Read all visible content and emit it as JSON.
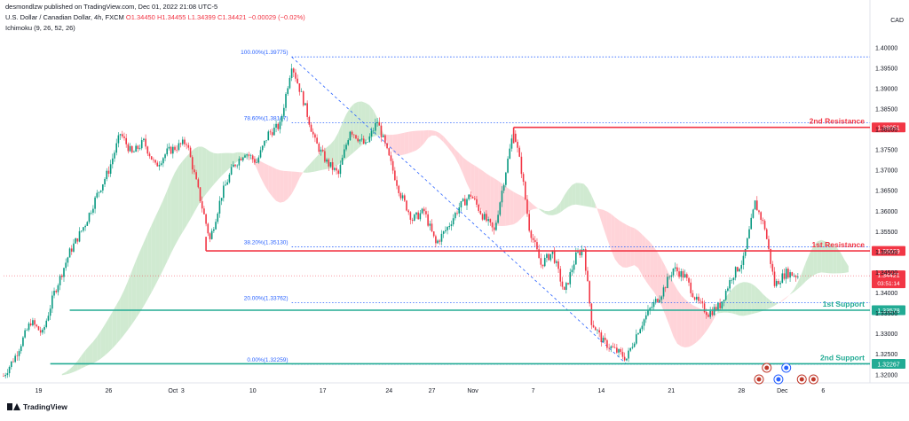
{
  "header": {
    "publisher": "desmondlzw published on TradingView.com, Dec 01, 2022 21:08 UTC-5",
    "symbol": "U.S. Dollar / Canadian Dollar, 4h, FXCM",
    "ohlc": {
      "o": "O1.34450",
      "h": "H1.34455",
      "l": "L1.34399",
      "c": "C1.34421",
      "chg": "−0.00029 (−0.02%)"
    },
    "indicator": "Ichimoku (9, 26, 52, 26)"
  },
  "currency": "CAD",
  "brand": "TradingView",
  "chart_data": {
    "type": "candlestick",
    "ylim": [
      1.318,
      1.403
    ],
    "y_ticks": [
      "1.40000",
      "1.39500",
      "1.39000",
      "1.38500",
      "1.38000",
      "1.37500",
      "1.37000",
      "1.36500",
      "1.36000",
      "1.35500",
      "1.35000",
      "1.34500",
      "1.34000",
      "1.33500",
      "1.33000",
      "1.32500",
      "1.32000"
    ],
    "x_ticks": [
      {
        "label": "19",
        "bar": 18
      },
      {
        "label": "26",
        "bar": 54
      },
      {
        "label": "Oct",
        "bar": 87
      },
      {
        "label": "3",
        "bar": 92
      },
      {
        "label": "10",
        "bar": 128
      },
      {
        "label": "17",
        "bar": 164
      },
      {
        "label": "24",
        "bar": 198
      },
      {
        "label": "27",
        "bar": 220
      },
      {
        "label": "Nov",
        "bar": 241
      },
      {
        "label": "7",
        "bar": 272
      },
      {
        "label": "14",
        "bar": 307
      },
      {
        "label": "21",
        "bar": 343
      },
      {
        "label": "28",
        "bar": 379
      },
      {
        "label": "Dec",
        "bar": 400
      },
      {
        "label": "6",
        "bar": 421
      }
    ],
    "total_bars": 445,
    "price_path": [
      [
        0,
        1.3197
      ],
      [
        6,
        1.3245
      ],
      [
        14,
        1.333
      ],
      [
        20,
        1.33
      ],
      [
        26,
        1.34
      ],
      [
        34,
        1.35
      ],
      [
        42,
        1.357
      ],
      [
        48,
        1.364
      ],
      [
        54,
        1.37
      ],
      [
        60,
        1.379
      ],
      [
        66,
        1.374
      ],
      [
        72,
        1.377
      ],
      [
        78,
        1.371
      ],
      [
        84,
        1.3745
      ],
      [
        90,
        1.376
      ],
      [
        94,
        1.377
      ],
      [
        100,
        1.365
      ],
      [
        106,
        1.353
      ],
      [
        112,
        1.364
      ],
      [
        118,
        1.371
      ],
      [
        124,
        1.3745
      ],
      [
        130,
        1.372
      ],
      [
        136,
        1.379
      ],
      [
        142,
        1.381
      ],
      [
        148,
        1.396
      ],
      [
        154,
        1.387
      ],
      [
        160,
        1.377
      ],
      [
        166,
        1.372
      ],
      [
        172,
        1.369
      ],
      [
        178,
        1.38
      ],
      [
        186,
        1.376
      ],
      [
        192,
        1.382
      ],
      [
        198,
        1.373
      ],
      [
        204,
        1.364
      ],
      [
        210,
        1.358
      ],
      [
        216,
        1.36
      ],
      [
        222,
        1.352
      ],
      [
        228,
        1.356
      ],
      [
        234,
        1.361
      ],
      [
        240,
        1.364
      ],
      [
        246,
        1.359
      ],
      [
        252,
        1.355
      ],
      [
        258,
        1.37
      ],
      [
        262,
        1.38
      ],
      [
        266,
        1.37
      ],
      [
        270,
        1.356
      ],
      [
        276,
        1.347
      ],
      [
        282,
        1.35
      ],
      [
        288,
        1.34
      ],
      [
        294,
        1.349
      ],
      [
        298,
        1.351
      ],
      [
        302,
        1.333
      ],
      [
        308,
        1.328
      ],
      [
        314,
        1.326
      ],
      [
        320,
        1.324
      ],
      [
        326,
        1.331
      ],
      [
        332,
        1.336
      ],
      [
        338,
        1.34
      ],
      [
        344,
        1.346
      ],
      [
        350,
        1.344
      ],
      [
        356,
        1.338
      ],
      [
        362,
        1.335
      ],
      [
        368,
        1.337
      ],
      [
        374,
        1.344
      ],
      [
        380,
        1.348
      ],
      [
        386,
        1.362
      ],
      [
        391,
        1.356
      ],
      [
        396,
        1.342
      ],
      [
        402,
        1.345
      ],
      [
        408,
        1.3442
      ]
    ],
    "fibonacci": [
      {
        "level": "100.00%",
        "price": 1.39775,
        "label": "100.00%(1.39775)"
      },
      {
        "level": "78.60%",
        "price": 1.38167,
        "label": "78.60%(1.38167)"
      },
      {
        "level": "38.20%",
        "price": 1.3513,
        "label": "38.20%(1.35130)"
      },
      {
        "level": "20.00%",
        "price": 1.33762,
        "label": "20.00%(1.33762)"
      },
      {
        "level": "0.00%",
        "price": 1.32259,
        "label": "0.00%(1.32259)"
      }
    ],
    "levels": [
      {
        "name": "2nd Resistance",
        "price": 1.38051,
        "label": "1.38051",
        "color": "#f23645",
        "start_bar": 262
      },
      {
        "name": "1st Resistance",
        "price": 1.35029,
        "label": "1.35029",
        "color": "#f23645",
        "start_bar": 104
      },
      {
        "name": "1st Support",
        "price": 1.33578,
        "label": "1.33578",
        "color": "#22ab94",
        "start_bar": 34
      },
      {
        "name": "2nd Support",
        "price": 1.32267,
        "label": "1.32267",
        "color": "#22ab94",
        "start_bar": 24
      }
    ],
    "current_price": {
      "label": "1.34421",
      "countdown": "03:51:14",
      "price": 1.34421
    },
    "colors": {
      "up": "#089981",
      "down": "#f23645",
      "cloud_bull": "#c8e6c9",
      "cloud_bear": "#ffcdd2",
      "fib": "#2962ff"
    }
  }
}
